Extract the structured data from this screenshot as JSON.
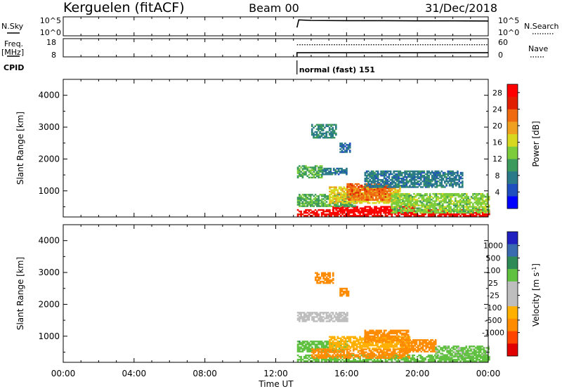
{
  "header": {
    "station": "Kerguelen (fitACF)",
    "beam": "Beam 00",
    "date": "31/Dec/2018"
  },
  "noise_panel": {
    "left_label": "N.Sky",
    "right_label": "N.Search",
    "tick_top": "10^5",
    "tick_bottom": "10^0"
  },
  "freq_panel": {
    "left_label_line1": "Freq.",
    "left_label_line2": "[MHz]",
    "right_label": "Nave",
    "left_tick_top": "18",
    "left_tick_bottom": "8",
    "right_tick_top": "60",
    "right_tick_bottom": "0"
  },
  "cpid_panel": {
    "label": "CPID",
    "mode_text": "normal (fast) 151"
  },
  "colors": {
    "power_scale": [
      "#0000ff",
      "#1f4fbf",
      "#2a7a8a",
      "#3c9a5c",
      "#7ccc3c",
      "#d8d820",
      "#f0a020",
      "#ef6a10",
      "#e02000",
      "#ff0000"
    ],
    "velocity_scale": [
      "#e00000",
      "#ff4500",
      "#ff8c00",
      "#ffb000",
      "#bebebe",
      "#bebebe",
      "#60c040",
      "#2e8b57",
      "#3a6ab0",
      "#2020c0"
    ]
  },
  "chart_data": [
    {
      "type": "line",
      "name": "noise",
      "x_unit": "hours UT",
      "xlim": [
        0,
        24
      ],
      "series": [
        {
          "name": "N.Sky",
          "x": [
            13.2,
            13.3,
            14,
            16,
            18,
            20,
            22,
            24
          ],
          "y": [
            2.2,
            4.2,
            4.05,
            4.0,
            4.0,
            3.95,
            3.95,
            3.9
          ]
        },
        {
          "name": "N.Search",
          "x": [
            13.2,
            24
          ],
          "y": [
            null,
            null
          ]
        }
      ],
      "ylim": [
        0,
        5
      ],
      "ytick_labels": [
        "10^0",
        "10^5"
      ]
    },
    {
      "type": "line",
      "name": "frequency",
      "x_unit": "hours UT",
      "xlim": [
        0,
        24
      ],
      "series": [
        {
          "name": "Freq.",
          "x": [
            13.2,
            24
          ],
          "y": [
            10.3,
            10.3
          ]
        },
        {
          "name": "Nave",
          "x": [
            13.2,
            24
          ],
          "y": [
            40,
            40
          ]
        }
      ],
      "ylim": [
        8,
        18
      ],
      "y2lim": [
        0,
        60
      ]
    },
    {
      "type": "heatmap",
      "name": "power",
      "title": "",
      "xlabel": "",
      "ylabel": "Slant Range [km]",
      "xlim": [
        0,
        24
      ],
      "ylim": [
        180,
        4500
      ],
      "yticks": [
        1000,
        2000,
        3000,
        4000
      ],
      "colorbar_label": "Power [dB]",
      "colorbar_ticks": [
        "4",
        "8",
        "12",
        "16",
        "20",
        "24",
        "28"
      ],
      "colorbar_range": [
        0,
        30
      ],
      "regions": [
        {
          "t0": 13.2,
          "t1": 24.0,
          "r0": 200,
          "r1": 400,
          "value": 26
        },
        {
          "t0": 15.2,
          "t1": 19.8,
          "r0": 300,
          "r1": 500,
          "value": 29
        },
        {
          "t0": 13.2,
          "t1": 16.5,
          "r0": 500,
          "r1": 900,
          "value": 10
        },
        {
          "t0": 15.0,
          "t1": 19.0,
          "r0": 600,
          "r1": 1100,
          "value": 16
        },
        {
          "t0": 16.0,
          "t1": 18.5,
          "r0": 700,
          "r1": 1200,
          "value": 21
        },
        {
          "t0": 18.5,
          "t1": 24.0,
          "r0": 300,
          "r1": 900,
          "value": 12
        },
        {
          "t0": 17.0,
          "t1": 22.5,
          "r0": 1100,
          "r1": 1600,
          "value": 6
        },
        {
          "t0": 13.2,
          "t1": 14.6,
          "r0": 1400,
          "r1": 1800,
          "value": 10
        },
        {
          "t0": 14.6,
          "t1": 16.0,
          "r0": 1500,
          "r1": 1700,
          "value": 6
        },
        {
          "t0": 14.0,
          "t1": 15.4,
          "r0": 2650,
          "r1": 3100,
          "value": 7
        },
        {
          "t0": 15.6,
          "t1": 16.2,
          "r0": 2200,
          "r1": 2500,
          "value": 5
        }
      ]
    },
    {
      "type": "heatmap",
      "name": "velocity",
      "title": "",
      "xlabel": "Time UT",
      "ylabel": "Slant Range [km]",
      "xlim": [
        0,
        24
      ],
      "ylim": [
        180,
        4500
      ],
      "yticks": [
        1000,
        2000,
        3000,
        4000
      ],
      "xticks": [
        "00:00",
        "04:00",
        "08:00",
        "12:00",
        "16:00",
        "20:00",
        "00:00"
      ],
      "colorbar_label": "Velocity [m s^-1]",
      "colorbar_ticks": [
        "1000",
        "500",
        "100",
        "25",
        "-25",
        "-100",
        "-500",
        "-1000"
      ],
      "regions": [
        {
          "t0": 13.2,
          "t1": 24.0,
          "r0": 200,
          "r1": 420,
          "value": 70
        },
        {
          "t0": 13.2,
          "t1": 16.0,
          "r0": 500,
          "r1": 850,
          "value": 80
        },
        {
          "t0": 14.0,
          "t1": 19.5,
          "r0": 300,
          "r1": 600,
          "value": -120
        },
        {
          "t0": 15.0,
          "t1": 19.5,
          "r0": 600,
          "r1": 1000,
          "value": -60
        },
        {
          "t0": 17.0,
          "t1": 19.5,
          "r0": 800,
          "r1": 1200,
          "value": -200
        },
        {
          "t0": 19.0,
          "t1": 21.0,
          "r0": 500,
          "r1": 900,
          "value": -150
        },
        {
          "t0": 21.0,
          "t1": 24.0,
          "r0": 300,
          "r1": 700,
          "value": 40
        },
        {
          "t0": 13.2,
          "t1": 16.0,
          "r0": 1450,
          "r1": 1750,
          "value": 0
        },
        {
          "t0": 14.2,
          "t1": 15.2,
          "r0": 2650,
          "r1": 3000,
          "value": -130
        },
        {
          "t0": 15.6,
          "t1": 16.1,
          "r0": 2250,
          "r1": 2500,
          "value": -150
        }
      ]
    }
  ]
}
